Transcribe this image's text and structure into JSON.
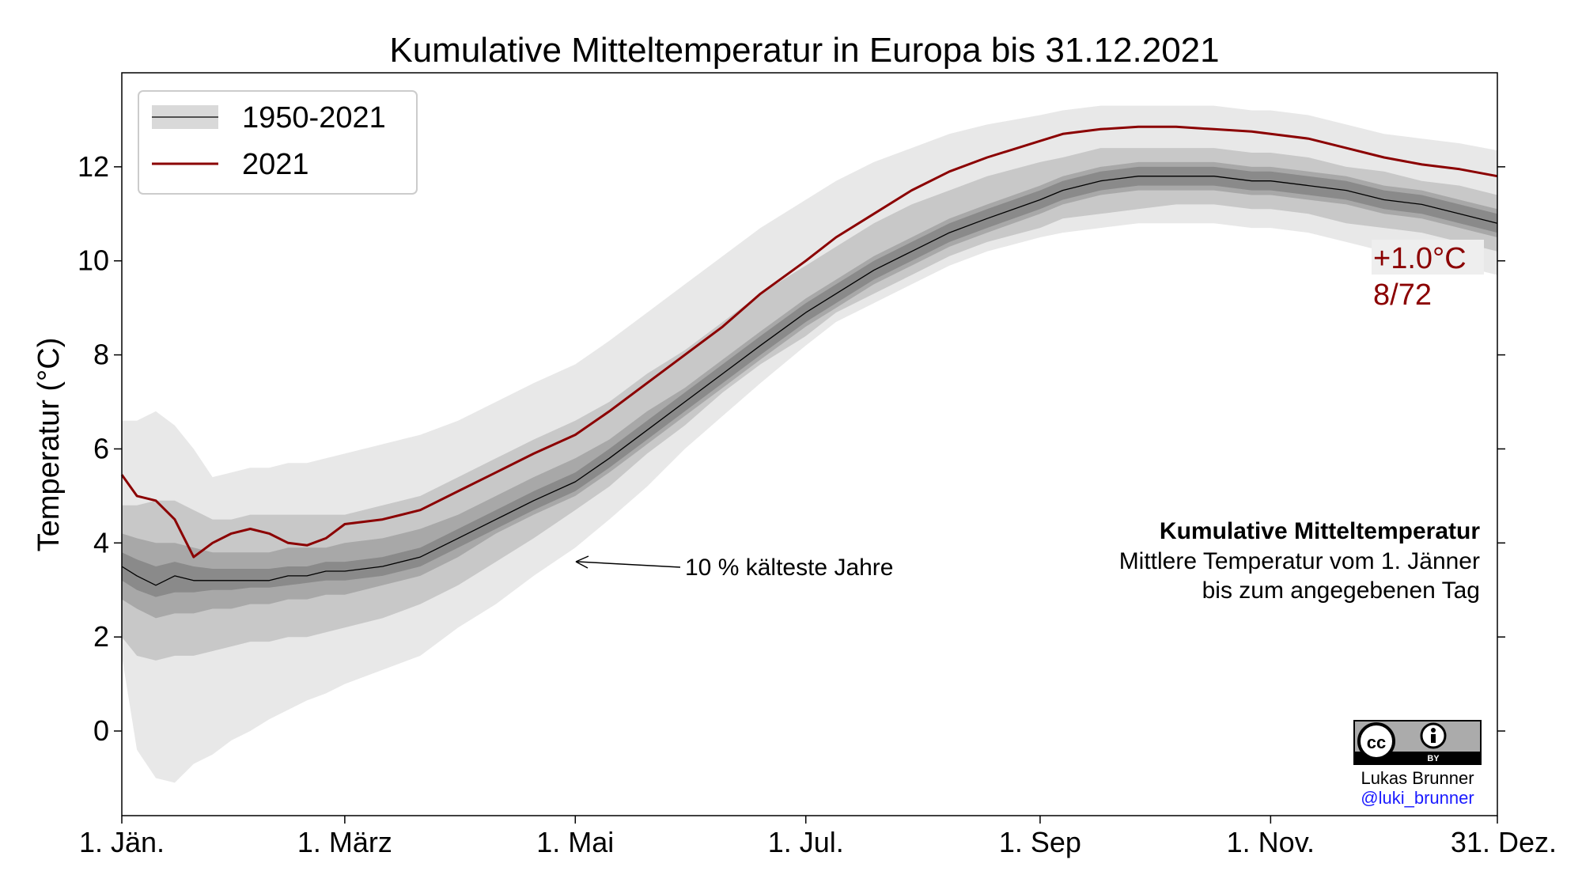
{
  "chart_data": {
    "type": "area",
    "title": "Kumulative Mitteltemperatur in Europa bis 31.12.2021",
    "ylabel": "Temperatur (°C)",
    "xlabel": "",
    "ylim": [
      -1.8,
      14.0
    ],
    "xlim": [
      1,
      365
    ],
    "grid": false,
    "legend_position": "top-left",
    "x_ticks": [
      {
        "day": 1,
        "label": "1. Jän."
      },
      {
        "day": 60,
        "label": "1. März"
      },
      {
        "day": 121,
        "label": "1. Mai"
      },
      {
        "day": 182,
        "label": "1. Jul."
      },
      {
        "day": 244,
        "label": "1. Sep"
      },
      {
        "day": 305,
        "label": "1. Nov."
      },
      {
        "day": 365,
        "label": "31. Dez."
      }
    ],
    "y_ticks": [
      0,
      2,
      4,
      6,
      8,
      10,
      12
    ],
    "x": [
      1,
      5,
      10,
      15,
      20,
      25,
      30,
      35,
      40,
      45,
      50,
      55,
      60,
      70,
      80,
      90,
      100,
      110,
      121,
      130,
      140,
      150,
      160,
      170,
      182,
      190,
      200,
      210,
      220,
      230,
      244,
      250,
      260,
      270,
      280,
      290,
      300,
      305,
      315,
      325,
      335,
      345,
      355,
      365
    ],
    "series": [
      {
        "name": "1950-2021",
        "role": "median",
        "values": [
          3.5,
          3.3,
          3.1,
          3.3,
          3.2,
          3.2,
          3.2,
          3.2,
          3.2,
          3.3,
          3.3,
          3.4,
          3.4,
          3.5,
          3.7,
          4.1,
          4.5,
          4.9,
          5.3,
          5.8,
          6.4,
          7.0,
          7.6,
          8.2,
          8.9,
          9.3,
          9.8,
          10.2,
          10.6,
          10.9,
          11.3,
          11.5,
          11.7,
          11.8,
          11.8,
          11.8,
          11.7,
          11.7,
          11.6,
          11.5,
          11.3,
          11.2,
          11.0,
          10.8
        ]
      },
      {
        "name": "2021",
        "values": [
          5.45,
          5.0,
          4.9,
          4.5,
          3.7,
          4.0,
          4.2,
          4.3,
          4.2,
          4.0,
          3.95,
          4.1,
          4.4,
          4.5,
          4.7,
          5.1,
          5.5,
          5.9,
          6.3,
          6.8,
          7.4,
          8.0,
          8.6,
          9.3,
          10.0,
          10.5,
          11.0,
          11.5,
          11.9,
          12.2,
          12.55,
          12.7,
          12.8,
          12.85,
          12.85,
          12.8,
          12.75,
          12.7,
          12.6,
          12.4,
          12.2,
          12.05,
          11.95,
          11.8
        ]
      }
    ],
    "bands": [
      {
        "level": "outer",
        "color": "#e8e8e8",
        "lower": [
          1.6,
          -0.4,
          -1.0,
          -1.1,
          -0.7,
          -0.5,
          -0.2,
          0.0,
          0.25,
          0.45,
          0.65,
          0.8,
          1.0,
          1.3,
          1.6,
          2.2,
          2.7,
          3.3,
          3.9,
          4.5,
          5.2,
          6.0,
          6.7,
          7.4,
          8.2,
          8.7,
          9.1,
          9.5,
          9.9,
          10.2,
          10.5,
          10.6,
          10.7,
          10.8,
          10.8,
          10.8,
          10.7,
          10.7,
          10.6,
          10.4,
          10.2,
          10.1,
          9.9,
          9.7
        ],
        "upper": [
          6.6,
          6.6,
          6.8,
          6.5,
          6.0,
          5.4,
          5.5,
          5.6,
          5.6,
          5.7,
          5.7,
          5.8,
          5.9,
          6.1,
          6.3,
          6.6,
          7.0,
          7.4,
          7.8,
          8.3,
          8.9,
          9.5,
          10.1,
          10.7,
          11.3,
          11.7,
          12.1,
          12.4,
          12.7,
          12.9,
          13.1,
          13.2,
          13.3,
          13.3,
          13.3,
          13.3,
          13.2,
          13.2,
          13.1,
          12.9,
          12.7,
          12.6,
          12.5,
          12.35
        ]
      },
      {
        "level": "mid",
        "color": "#c8c8c8",
        "lower": [
          2.0,
          1.6,
          1.5,
          1.6,
          1.6,
          1.7,
          1.8,
          1.9,
          1.9,
          2.0,
          2.0,
          2.1,
          2.2,
          2.4,
          2.7,
          3.1,
          3.6,
          4.1,
          4.7,
          5.2,
          5.9,
          6.5,
          7.2,
          7.8,
          8.4,
          8.9,
          9.3,
          9.7,
          10.1,
          10.4,
          10.7,
          10.9,
          11.0,
          11.1,
          11.2,
          11.2,
          11.1,
          11.1,
          11.0,
          10.8,
          10.7,
          10.6,
          10.4,
          10.2
        ],
        "upper": [
          4.8,
          4.8,
          4.9,
          4.9,
          4.7,
          4.5,
          4.5,
          4.6,
          4.6,
          4.6,
          4.6,
          4.6,
          4.6,
          4.8,
          5.0,
          5.4,
          5.8,
          6.2,
          6.6,
          7.0,
          7.6,
          8.1,
          8.7,
          9.3,
          9.9,
          10.3,
          10.8,
          11.2,
          11.5,
          11.8,
          12.1,
          12.2,
          12.4,
          12.4,
          12.4,
          12.4,
          12.3,
          12.3,
          12.2,
          12.0,
          11.9,
          11.7,
          11.6,
          11.4
        ]
      },
      {
        "level": "inner",
        "color": "#a8a8a8",
        "lower": [
          2.8,
          2.6,
          2.4,
          2.5,
          2.5,
          2.6,
          2.6,
          2.7,
          2.7,
          2.8,
          2.8,
          2.9,
          2.9,
          3.1,
          3.3,
          3.7,
          4.2,
          4.6,
          5.0,
          5.5,
          6.1,
          6.7,
          7.3,
          7.9,
          8.6,
          9.0,
          9.5,
          9.9,
          10.3,
          10.6,
          11.0,
          11.2,
          11.4,
          11.5,
          11.5,
          11.5,
          11.4,
          11.4,
          11.3,
          11.2,
          11.0,
          10.9,
          10.7,
          10.5
        ],
        "upper": [
          4.2,
          4.1,
          4.0,
          4.0,
          3.9,
          3.8,
          3.8,
          3.8,
          3.8,
          3.9,
          3.9,
          3.9,
          4.0,
          4.1,
          4.3,
          4.6,
          5.0,
          5.4,
          5.8,
          6.2,
          6.8,
          7.3,
          7.9,
          8.5,
          9.2,
          9.6,
          10.1,
          10.5,
          10.9,
          11.2,
          11.6,
          11.8,
          12.0,
          12.1,
          12.1,
          12.1,
          12.0,
          12.0,
          11.9,
          11.8,
          11.6,
          11.5,
          11.3,
          11.1
        ]
      },
      {
        "level": "core",
        "color": "#8a8a8a",
        "lower": [
          3.2,
          3.0,
          2.85,
          2.95,
          2.95,
          3.0,
          3.0,
          3.05,
          3.05,
          3.1,
          3.15,
          3.2,
          3.2,
          3.3,
          3.5,
          3.9,
          4.3,
          4.7,
          5.1,
          5.6,
          6.2,
          6.8,
          7.4,
          8.0,
          8.7,
          9.1,
          9.6,
          10.0,
          10.4,
          10.7,
          11.1,
          11.3,
          11.5,
          11.6,
          11.6,
          11.6,
          11.5,
          11.5,
          11.4,
          11.3,
          11.1,
          11.0,
          10.8,
          10.6
        ],
        "upper": [
          3.8,
          3.65,
          3.5,
          3.6,
          3.5,
          3.45,
          3.45,
          3.45,
          3.45,
          3.5,
          3.5,
          3.6,
          3.6,
          3.7,
          3.9,
          4.3,
          4.7,
          5.1,
          5.5,
          6.0,
          6.6,
          7.2,
          7.8,
          8.4,
          9.1,
          9.5,
          10.0,
          10.4,
          10.8,
          11.1,
          11.5,
          11.7,
          11.9,
          12.0,
          12.0,
          12.0,
          11.9,
          11.9,
          11.8,
          11.7,
          11.5,
          11.4,
          11.2,
          11.0
        ]
      }
    ],
    "legend": [
      "1950-2021",
      "2021"
    ],
    "colors": {
      "series_2021": "#8b0000",
      "median": "#000000",
      "legend_patch": "#d9d9d9"
    },
    "annotations": {
      "anomaly": "+1.0°C",
      "rank": "8/72",
      "arrow_label": "10 % kälteste Jahre",
      "arrow_target_day": 121,
      "arrow_target_value": 3.55,
      "info_title": "Kumulative Mitteltemperatur",
      "info_line1": "Mittlere Temperatur vom 1. Jänner",
      "info_line2": "bis zum angegebenen Tag"
    },
    "credit": {
      "license": "cc-by-icon",
      "author": "Lukas Brunner",
      "handle": "@luki_brunner"
    }
  }
}
